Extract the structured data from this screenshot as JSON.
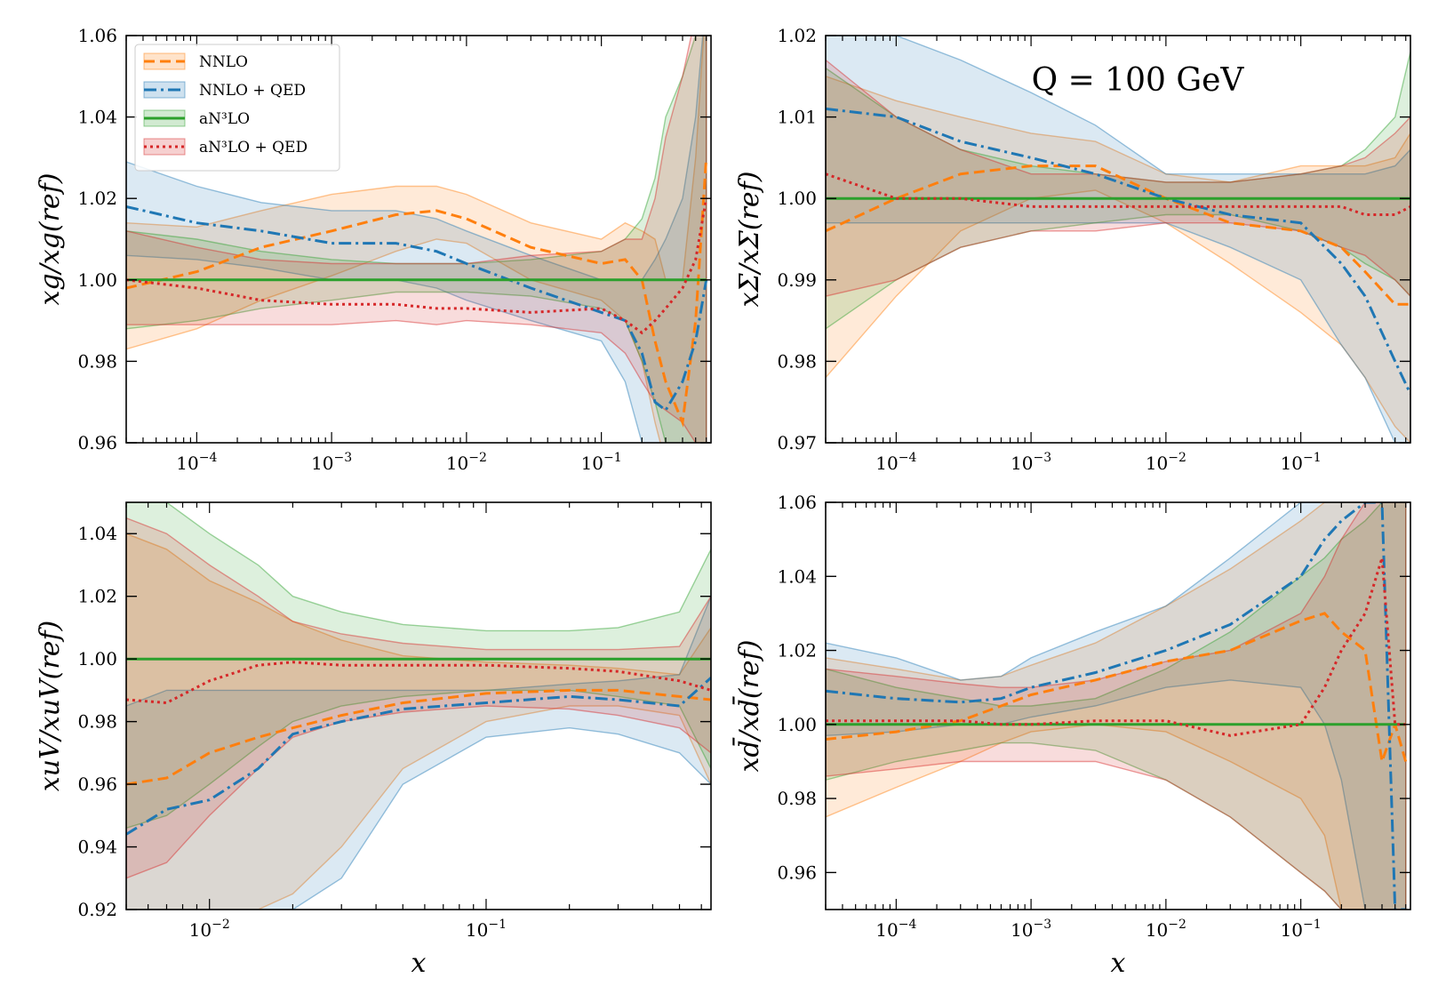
{
  "figure": {
    "annotation": "Q = 100 GeV"
  },
  "legend": [
    {
      "label": "NNLO",
      "color": "#ff7f0e",
      "dash": "dashed"
    },
    {
      "label": "NNLO + QED",
      "color": "#1f77b4",
      "dash": "dashdot"
    },
    {
      "label": "aN³LO",
      "color": "#2ca02c",
      "dash": "solid"
    },
    {
      "label": "aN³LO + QED",
      "color": "#d62728",
      "dash": "dotted"
    }
  ],
  "chart_data": [
    {
      "type": "line",
      "id": "gluon",
      "ylabel": "xg/xg(ref)",
      "xlabel": "",
      "xscale": "log",
      "xlim": [
        3e-05,
        0.65
      ],
      "ylim": [
        0.96,
        1.06
      ],
      "yticks": [
        "0.96",
        "0.98",
        "1.00",
        "1.02",
        "1.04",
        "1.06"
      ],
      "xticks": [
        {
          "exp": "−4",
          "v": 0.0001
        },
        {
          "exp": "−3",
          "v": 0.001
        },
        {
          "exp": "−2",
          "v": 0.01
        },
        {
          "exp": "−1",
          "v": 0.1
        }
      ],
      "x": [
        3e-05,
        0.0001,
        0.0003,
        0.001,
        0.003,
        0.006,
        0.01,
        0.03,
        0.1,
        0.15,
        0.2,
        0.25,
        0.3,
        0.4,
        0.5,
        0.6
      ],
      "series": [
        {
          "name": "NNLO",
          "values": [
            0.998,
            1.002,
            1.008,
            1.012,
            1.016,
            1.017,
            1.015,
            1.008,
            1.004,
            1.005,
            1.0,
            0.985,
            0.975,
            0.965,
            0.99,
            1.03
          ],
          "lower": [
            0.983,
            0.988,
            0.995,
            1.001,
            1.007,
            1.01,
            1.009,
            1.0,
            0.995,
            0.99,
            0.98,
            0.965,
            0.955,
            0.94,
            0.945,
            0.95
          ],
          "upper": [
            1.014,
            1.013,
            1.017,
            1.021,
            1.023,
            1.023,
            1.021,
            1.014,
            1.01,
            1.014,
            1.012,
            1.01,
            1.0,
            1.0,
            1.03,
            1.07
          ]
        },
        {
          "name": "NNLO + QED",
          "values": [
            1.018,
            1.014,
            1.012,
            1.009,
            1.009,
            1.007,
            1.004,
            0.998,
            0.992,
            0.99,
            0.982,
            0.97,
            0.968,
            0.975,
            0.985,
            1.0
          ],
          "lower": [
            1.006,
            1.005,
            1.003,
            1.0,
            1.0,
            0.998,
            0.995,
            0.99,
            0.985,
            0.975,
            0.96,
            0.95,
            0.945,
            0.94,
            0.945,
            0.95
          ],
          "upper": [
            1.029,
            1.023,
            1.019,
            1.017,
            1.017,
            1.015,
            1.012,
            1.006,
            1.0,
            1.0,
            1.0,
            1.005,
            1.01,
            1.02,
            1.04,
            1.07
          ]
        },
        {
          "name": "aN³LO",
          "values": [
            1.0,
            1.0,
            1.0,
            1.0,
            1.0,
            1.0,
            1.0,
            1.0,
            1.0,
            1.0,
            1.0,
            1.0,
            1.0,
            1.0,
            1.0,
            1.0
          ],
          "lower": [
            0.988,
            0.99,
            0.993,
            0.995,
            0.997,
            0.997,
            0.997,
            0.996,
            0.993,
            0.99,
            0.98,
            0.97,
            0.96,
            0.955,
            0.955,
            0.955
          ],
          "upper": [
            1.012,
            1.01,
            1.007,
            1.005,
            1.004,
            1.004,
            1.004,
            1.005,
            1.007,
            1.01,
            1.015,
            1.025,
            1.04,
            1.05,
            1.06,
            1.07
          ]
        },
        {
          "name": "aN³LO + QED",
          "values": [
            1.0,
            0.998,
            0.995,
            0.994,
            0.994,
            0.993,
            0.993,
            0.992,
            0.993,
            0.99,
            0.987,
            0.99,
            0.993,
            0.998,
            1.005,
            1.02
          ],
          "lower": [
            0.989,
            0.989,
            0.989,
            0.989,
            0.99,
            0.989,
            0.99,
            0.989,
            0.987,
            0.982,
            0.975,
            0.97,
            0.968,
            0.965,
            0.96,
            0.96
          ],
          "upper": [
            1.012,
            1.008,
            1.005,
            1.004,
            1.004,
            1.004,
            1.004,
            1.006,
            1.007,
            1.01,
            1.01,
            1.02,
            1.035,
            1.05,
            1.065,
            1.07
          ]
        }
      ]
    },
    {
      "type": "line",
      "id": "singlet",
      "ylabel": "xΣ/xΣ(ref)",
      "xlabel": "",
      "xscale": "log",
      "xlim": [
        3e-05,
        0.65
      ],
      "ylim": [
        0.97,
        1.02
      ],
      "yticks": [
        "0.97",
        "0.98",
        "0.99",
        "1.00",
        "1.01",
        "1.02"
      ],
      "xticks": [
        {
          "exp": "−4",
          "v": 0.0001
        },
        {
          "exp": "−3",
          "v": 0.001
        },
        {
          "exp": "−2",
          "v": 0.01
        },
        {
          "exp": "−1",
          "v": 0.1
        }
      ],
      "x": [
        3e-05,
        0.0001,
        0.0003,
        0.001,
        0.003,
        0.01,
        0.03,
        0.1,
        0.2,
        0.3,
        0.5,
        0.65
      ],
      "series": [
        {
          "name": "NNLO",
          "values": [
            0.996,
            1.0,
            1.003,
            1.004,
            1.004,
            1.0,
            0.997,
            0.996,
            0.994,
            0.991,
            0.987,
            0.987
          ],
          "lower": [
            0.978,
            0.988,
            0.996,
            1.0,
            1.001,
            0.997,
            0.992,
            0.986,
            0.982,
            0.978,
            0.972,
            0.97
          ],
          "upper": [
            1.015,
            1.012,
            1.01,
            1.008,
            1.007,
            1.003,
            1.002,
            1.004,
            1.004,
            1.004,
            1.005,
            1.008
          ]
        },
        {
          "name": "NNLO + QED",
          "values": [
            1.011,
            1.01,
            1.007,
            1.005,
            1.003,
            1.0,
            0.998,
            0.997,
            0.992,
            0.988,
            0.98,
            0.976
          ],
          "lower": [
            0.997,
            0.997,
            0.997,
            0.997,
            0.997,
            0.997,
            0.994,
            0.99,
            0.982,
            0.978,
            0.97,
            0.965
          ],
          "upper": [
            1.02,
            1.02,
            1.017,
            1.013,
            1.009,
            1.003,
            1.003,
            1.003,
            1.003,
            1.003,
            1.004,
            1.006
          ]
        },
        {
          "name": "aN³LO",
          "values": [
            1.0,
            1.0,
            1.0,
            1.0,
            1.0,
            1.0,
            1.0,
            1.0,
            1.0,
            1.0,
            1.0,
            1.0
          ],
          "lower": [
            0.984,
            0.99,
            0.994,
            0.996,
            0.997,
            0.998,
            0.998,
            0.996,
            0.994,
            0.992,
            0.99,
            0.988
          ],
          "upper": [
            1.016,
            1.01,
            1.006,
            1.004,
            1.003,
            1.002,
            1.002,
            1.003,
            1.004,
            1.006,
            1.01,
            1.018
          ]
        },
        {
          "name": "aN³LO + QED",
          "values": [
            1.003,
            1.0,
            1.0,
            0.999,
            0.999,
            0.999,
            0.999,
            0.999,
            0.999,
            0.998,
            0.998,
            0.999
          ],
          "lower": [
            0.988,
            0.99,
            0.994,
            0.996,
            0.996,
            0.997,
            0.997,
            0.996,
            0.994,
            0.993,
            0.99,
            0.988
          ],
          "upper": [
            1.017,
            1.01,
            1.006,
            1.003,
            1.003,
            1.002,
            1.002,
            1.003,
            1.004,
            1.005,
            1.008,
            1.01
          ]
        }
      ]
    },
    {
      "type": "line",
      "id": "uvalence",
      "ylabel": "xuV/xuV(ref)",
      "xlabel": "x",
      "xscale": "log",
      "xlim": [
        0.005,
        0.65
      ],
      "ylim": [
        0.92,
        1.05
      ],
      "yticks": [
        "0.92",
        "0.94",
        "0.96",
        "0.98",
        "1.00",
        "1.02",
        "1.04"
      ],
      "xticks": [
        {
          "exp": "−2",
          "v": 0.01
        },
        {
          "exp": "−1",
          "v": 0.1
        }
      ],
      "x": [
        0.005,
        0.007,
        0.01,
        0.015,
        0.02,
        0.03,
        0.05,
        0.1,
        0.2,
        0.3,
        0.5,
        0.65
      ],
      "series": [
        {
          "name": "NNLO",
          "values": [
            0.96,
            0.962,
            0.97,
            0.975,
            0.978,
            0.982,
            0.986,
            0.989,
            0.99,
            0.99,
            0.988,
            0.987
          ],
          "lower": [
            0.92,
            0.92,
            0.92,
            0.92,
            0.925,
            0.94,
            0.965,
            0.98,
            0.985,
            0.985,
            0.982,
            0.96
          ],
          "upper": [
            1.04,
            1.035,
            1.025,
            1.018,
            1.012,
            1.006,
            1.001,
            0.999,
            0.998,
            0.997,
            0.995,
            1.01
          ]
        },
        {
          "name": "NNLO + QED",
          "values": [
            0.944,
            0.952,
            0.955,
            0.965,
            0.976,
            0.98,
            0.984,
            0.986,
            0.988,
            0.987,
            0.985,
            0.994
          ],
          "lower": [
            0.92,
            0.92,
            0.92,
            0.92,
            0.92,
            0.93,
            0.96,
            0.975,
            0.978,
            0.976,
            0.97,
            0.96
          ],
          "upper": [
            0.985,
            0.99,
            0.99,
            0.99,
            0.99,
            0.99,
            0.99,
            0.99,
            0.992,
            0.993,
            0.995,
            1.02
          ]
        },
        {
          "name": "aN³LO",
          "values": [
            1.0,
            1.0,
            1.0,
            1.0,
            1.0,
            1.0,
            1.0,
            1.0,
            1.0,
            1.0,
            1.0,
            1.0
          ],
          "lower": [
            0.946,
            0.95,
            0.96,
            0.972,
            0.98,
            0.985,
            0.988,
            0.99,
            0.99,
            0.988,
            0.985,
            0.965
          ],
          "upper": [
            1.05,
            1.05,
            1.04,
            1.03,
            1.02,
            1.015,
            1.011,
            1.009,
            1.009,
            1.01,
            1.015,
            1.035
          ]
        },
        {
          "name": "aN³LO + QED",
          "values": [
            0.987,
            0.986,
            0.993,
            0.998,
            0.999,
            0.998,
            0.998,
            0.998,
            0.997,
            0.996,
            0.993,
            0.99
          ],
          "lower": [
            0.93,
            0.935,
            0.95,
            0.965,
            0.975,
            0.98,
            0.983,
            0.985,
            0.984,
            0.982,
            0.978,
            0.97
          ],
          "upper": [
            1.045,
            1.04,
            1.03,
            1.02,
            1.012,
            1.008,
            1.005,
            1.003,
            1.003,
            1.003,
            1.004,
            1.02
          ]
        }
      ]
    },
    {
      "type": "line",
      "id": "dbar",
      "ylabel": "xd̄/xd̄(ref)",
      "xlabel": "x",
      "xscale": "log",
      "xlim": [
        3e-05,
        0.65
      ],
      "ylim": [
        0.95,
        1.06
      ],
      "yticks": [
        "0.96",
        "0.98",
        "1.00",
        "1.02",
        "1.04",
        "1.06"
      ],
      "xticks": [
        {
          "exp": "−4",
          "v": 0.0001
        },
        {
          "exp": "−3",
          "v": 0.001
        },
        {
          "exp": "−2",
          "v": 0.01
        },
        {
          "exp": "−1",
          "v": 0.1
        }
      ],
      "x": [
        3e-05,
        0.0001,
        0.0003,
        0.0006,
        0.001,
        0.003,
        0.01,
        0.03,
        0.1,
        0.15,
        0.2,
        0.3,
        0.4,
        0.5,
        0.6
      ],
      "series": [
        {
          "name": "NNLO",
          "values": [
            0.996,
            0.998,
            1.001,
            1.005,
            1.008,
            1.012,
            1.017,
            1.02,
            1.028,
            1.03,
            1.025,
            1.02,
            0.99,
            1.0,
            0.99
          ],
          "lower": [
            0.975,
            0.983,
            0.99,
            0.995,
            0.998,
            1.0,
            0.998,
            0.99,
            0.98,
            0.97,
            0.95,
            0.95,
            0.95,
            0.95,
            0.95
          ],
          "upper": [
            1.018,
            1.015,
            1.012,
            1.013,
            1.016,
            1.022,
            1.032,
            1.042,
            1.055,
            1.06,
            1.06,
            1.06,
            1.06,
            1.06,
            1.06
          ]
        },
        {
          "name": "NNLO + QED",
          "values": [
            1.009,
            1.007,
            1.006,
            1.007,
            1.01,
            1.014,
            1.02,
            1.027,
            1.04,
            1.05,
            1.055,
            1.06,
            1.06,
            0.95,
            0.95
          ],
          "lower": [
            0.997,
            0.998,
            1.0,
            1.0,
            1.002,
            1.005,
            1.01,
            1.012,
            1.01,
            1.0,
            0.985,
            0.95,
            0.95,
            0.95,
            0.95
          ],
          "upper": [
            1.022,
            1.018,
            1.012,
            1.013,
            1.018,
            1.025,
            1.032,
            1.045,
            1.06,
            1.06,
            1.06,
            1.06,
            1.06,
            1.06,
            1.06
          ]
        },
        {
          "name": "aN³LO",
          "values": [
            1.0,
            1.0,
            1.0,
            1.0,
            1.0,
            1.0,
            1.0,
            1.0,
            1.0,
            1.0,
            1.0,
            1.0,
            1.0,
            1.0,
            1.0
          ],
          "lower": [
            0.985,
            0.99,
            0.993,
            0.995,
            0.995,
            0.993,
            0.985,
            0.975,
            0.96,
            0.955,
            0.95,
            0.95,
            0.95,
            0.95,
            0.95
          ],
          "upper": [
            1.015,
            1.01,
            1.007,
            1.005,
            1.005,
            1.007,
            1.015,
            1.025,
            1.04,
            1.045,
            1.05,
            1.055,
            1.06,
            1.06,
            1.06
          ]
        },
        {
          "name": "aN³LO + QED",
          "values": [
            1.001,
            1.001,
            1.001,
            1.0,
            1.0,
            1.001,
            1.001,
            0.997,
            1.0,
            1.01,
            1.02,
            1.03,
            1.045,
            1.0,
            1.0
          ],
          "lower": [
            0.986,
            0.988,
            0.99,
            0.99,
            0.99,
            0.99,
            0.985,
            0.975,
            0.96,
            0.955,
            0.95,
            0.95,
            0.95,
            0.95,
            0.95
          ],
          "upper": [
            1.015,
            1.013,
            1.011,
            1.01,
            1.01,
            1.012,
            1.017,
            1.02,
            1.03,
            1.04,
            1.05,
            1.06,
            1.06,
            1.06,
            1.06
          ]
        }
      ]
    }
  ]
}
